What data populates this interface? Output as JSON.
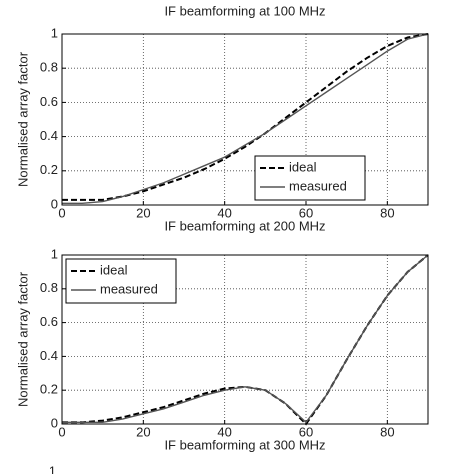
{
  "previous_chart_xlabel": "IF beamforming at 100 MHz",
  "next_chart_ytick": 1,
  "chart_data": [
    {
      "type": "line",
      "ylabel": "Normalised array factor",
      "xlabel": "IF beamforming at 200 MHz",
      "x": [
        0,
        5,
        10,
        15,
        20,
        25,
        30,
        35,
        40,
        45,
        50,
        55,
        60,
        65,
        70,
        75,
        80,
        85,
        90
      ],
      "series": [
        {
          "name": "ideal",
          "color": "#000000",
          "dash": true,
          "values": [
            0.03,
            0.03,
            0.03,
            0.05,
            0.08,
            0.12,
            0.16,
            0.21,
            0.27,
            0.34,
            0.42,
            0.51,
            0.6,
            0.69,
            0.78,
            0.86,
            0.93,
            0.98,
            1.0
          ]
        },
        {
          "name": "measured",
          "color": "#555555",
          "dash": false,
          "values": [
            0.01,
            0.01,
            0.02,
            0.05,
            0.09,
            0.13,
            0.18,
            0.23,
            0.28,
            0.35,
            0.42,
            0.5,
            0.58,
            0.66,
            0.74,
            0.82,
            0.9,
            0.97,
            1.0
          ]
        }
      ],
      "xlim": [
        0,
        90
      ],
      "xticks": [
        0,
        20,
        40,
        60,
        80
      ],
      "ylim": [
        0,
        1
      ],
      "yticks": [
        0,
        0.2,
        0.4,
        0.6,
        0.8,
        1
      ],
      "grid": true,
      "legend": "lower right"
    },
    {
      "type": "line",
      "ylabel": "Normalised array factor",
      "xlabel": "IF beamforming at 300 MHz",
      "x": [
        0,
        5,
        10,
        15,
        20,
        25,
        30,
        35,
        40,
        45,
        50,
        55,
        60,
        65,
        70,
        75,
        80,
        85,
        90
      ],
      "series": [
        {
          "name": "ideal",
          "color": "#000000",
          "dash": true,
          "values": [
            0.01,
            0.01,
            0.02,
            0.04,
            0.07,
            0.1,
            0.14,
            0.18,
            0.21,
            0.22,
            0.2,
            0.12,
            0.0,
            0.17,
            0.38,
            0.58,
            0.76,
            0.9,
            1.0
          ]
        },
        {
          "name": "measured",
          "color": "#555555",
          "dash": false,
          "values": [
            0.01,
            0.01,
            0.01,
            0.03,
            0.06,
            0.09,
            0.13,
            0.17,
            0.2,
            0.22,
            0.2,
            0.12,
            0.01,
            0.17,
            0.38,
            0.58,
            0.76,
            0.9,
            1.0
          ]
        }
      ],
      "xlim": [
        0,
        90
      ],
      "xticks": [
        0,
        20,
        40,
        60,
        80
      ],
      "ylim": [
        0,
        1
      ],
      "yticks": [
        0,
        0.2,
        0.4,
        0.6,
        0.8,
        1
      ],
      "grid": true,
      "legend": "upper left"
    }
  ]
}
